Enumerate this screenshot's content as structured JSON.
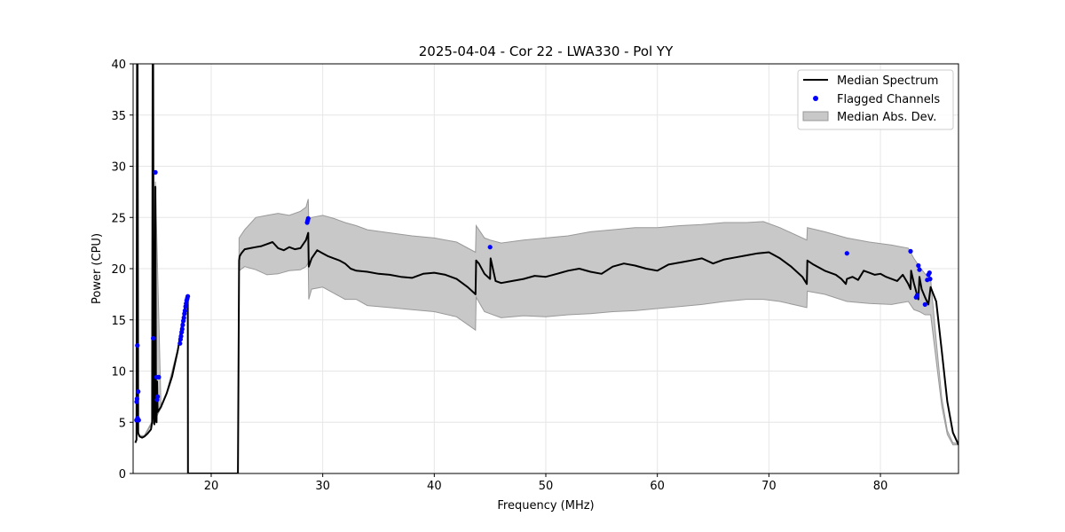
{
  "chart_data": {
    "type": "line",
    "title": "2025-04-04 - Cor 22 - LWA330 - Pol YY",
    "xlabel": "Frequency (MHz)",
    "ylabel": "Power (CPU)",
    "xlim": [
      13.0,
      87.0
    ],
    "ylim": [
      0,
      40
    ],
    "xticks": [
      20,
      30,
      40,
      50,
      60,
      70,
      80
    ],
    "yticks": [
      0,
      5,
      10,
      15,
      20,
      25,
      30,
      35,
      40
    ],
    "grid": true,
    "legend_position": "top-right",
    "colors": {
      "median": "#000000",
      "flagged": "#0000ff",
      "mad_fill": "#c8c8c8",
      "mad_edge": "#999999",
      "grid": "#e6e6e6"
    },
    "series": [
      {
        "name": "Median Spectrum",
        "kind": "line",
        "x": [
          13.2,
          13.3,
          13.35,
          13.4,
          13.45,
          13.5,
          13.6,
          13.8,
          14.0,
          14.3,
          14.6,
          14.7,
          14.75,
          14.8,
          14.85,
          14.9,
          14.95,
          15.0,
          15.05,
          15.1,
          15.15,
          15.2,
          15.5,
          16.0,
          16.5,
          17.0,
          17.3,
          17.6,
          17.9,
          17.92,
          18.0,
          22.4,
          22.5,
          22.55,
          22.7,
          23.0,
          23.5,
          24.0,
          24.5,
          25.0,
          25.5,
          26.0,
          26.5,
          27.0,
          27.5,
          28.0,
          28.5,
          28.7,
          28.75,
          29.0,
          29.5,
          30.0,
          30.5,
          31.0,
          31.5,
          32.0,
          32.5,
          33.0,
          34.0,
          35.0,
          36.0,
          37.0,
          38.0,
          39.0,
          40.0,
          41.0,
          42.0,
          43.0,
          43.7,
          43.75,
          44.0,
          44.5,
          45.0,
          45.05,
          45.5,
          46.0,
          47.0,
          48.0,
          49.0,
          50.0,
          51.0,
          52.0,
          53.0,
          54.0,
          55.0,
          56.0,
          57.0,
          58.0,
          59.0,
          60.0,
          61.0,
          62.0,
          63.0,
          64.0,
          65.0,
          66.0,
          67.0,
          68.0,
          69.0,
          70.0,
          71.0,
          72.0,
          73.0,
          73.4,
          73.45,
          74.0,
          75.0,
          76.0,
          76.5,
          76.9,
          77.0,
          77.5,
          78.0,
          78.5,
          79.0,
          79.5,
          80.0,
          80.5,
          81.0,
          81.5,
          82.0,
          82.5,
          82.7,
          82.75,
          83.0,
          83.2,
          83.4,
          83.5,
          83.7,
          84.0,
          84.3,
          84.5,
          85.0,
          85.5,
          86.0,
          86.5,
          87.0
        ],
        "y": [
          3.0,
          3.3,
          40.0,
          40.0,
          4.0,
          3.8,
          3.6,
          3.5,
          3.6,
          3.9,
          4.3,
          5.0,
          40.0,
          40.0,
          5.5,
          4.8,
          5.2,
          28.0,
          5.5,
          5.0,
          9.0,
          6.0,
          6.5,
          7.8,
          9.5,
          12.0,
          14.0,
          16.0,
          17.2,
          0.0,
          0.0,
          0.0,
          20.8,
          21.2,
          21.5,
          21.9,
          22.0,
          22.1,
          22.2,
          22.4,
          22.6,
          22.0,
          21.8,
          22.1,
          21.9,
          22.0,
          22.8,
          23.5,
          20.2,
          21.0,
          21.8,
          21.5,
          21.2,
          21.0,
          20.8,
          20.5,
          20.0,
          19.8,
          19.7,
          19.5,
          19.4,
          19.2,
          19.1,
          19.5,
          19.6,
          19.4,
          19.0,
          18.2,
          17.5,
          20.8,
          20.5,
          19.5,
          19.0,
          21.0,
          18.8,
          18.6,
          18.8,
          19.0,
          19.3,
          19.2,
          19.5,
          19.8,
          20.0,
          19.7,
          19.5,
          20.2,
          20.5,
          20.3,
          20.0,
          19.8,
          20.4,
          20.6,
          20.8,
          21.0,
          20.5,
          20.9,
          21.1,
          21.3,
          21.5,
          21.6,
          21.0,
          20.2,
          19.2,
          18.5,
          20.8,
          20.4,
          19.8,
          19.4,
          19.0,
          18.5,
          19.0,
          19.2,
          18.9,
          19.8,
          19.6,
          19.4,
          19.5,
          19.2,
          19.0,
          18.8,
          19.4,
          18.5,
          18.0,
          19.8,
          18.6,
          17.8,
          17.0,
          19.2,
          18.0,
          17.2,
          16.5,
          18.2,
          16.8,
          12.0,
          7.0,
          4.0,
          2.8
        ]
      },
      {
        "name": "Median Abs. Dev.",
        "kind": "band",
        "x": [
          13.2,
          13.3,
          13.35,
          13.4,
          13.45,
          13.6,
          14.0,
          14.7,
          14.75,
          14.8,
          14.85,
          15.0,
          15.5,
          16.0,
          17.0,
          17.9,
          17.92,
          22.4,
          22.5,
          23.0,
          24.0,
          25.0,
          26.0,
          27.0,
          28.0,
          28.5,
          28.7,
          28.75,
          29.0,
          30.0,
          31.0,
          32.0,
          33.0,
          34.0,
          36.0,
          38.0,
          40.0,
          42.0,
          43.7,
          43.75,
          44.5,
          45.0,
          46.0,
          48.0,
          50.0,
          52.0,
          54.0,
          56.0,
          58.0,
          60.0,
          62.0,
          64.0,
          66.0,
          68.0,
          69.5,
          71.0,
          73.4,
          73.45,
          75.0,
          77.0,
          79.0,
          81.0,
          82.5,
          83.0,
          83.5,
          84.0,
          84.5,
          85.0,
          85.5,
          86.0,
          86.5,
          87.0
        ],
        "lower": [
          3.0,
          3.2,
          4.0,
          4.0,
          3.9,
          3.6,
          3.6,
          4.9,
          4.9,
          4.9,
          5.0,
          5.3,
          6.4,
          7.7,
          11.8,
          17.0,
          0.0,
          0.0,
          19.8,
          20.2,
          19.9,
          19.4,
          19.5,
          19.8,
          19.9,
          20.2,
          20.6,
          17.0,
          18.0,
          18.2,
          17.6,
          17.0,
          17.0,
          16.4,
          16.2,
          16.0,
          15.8,
          15.3,
          14.0,
          17.2,
          15.8,
          15.6,
          15.2,
          15.4,
          15.3,
          15.5,
          15.6,
          15.8,
          15.9,
          16.1,
          16.3,
          16.5,
          16.8,
          17.0,
          17.0,
          16.8,
          16.2,
          17.8,
          17.5,
          16.8,
          16.6,
          16.5,
          16.8,
          16.0,
          15.8,
          15.5,
          15.5,
          11.0,
          6.6,
          3.8,
          2.8,
          2.8
        ],
        "upper": [
          3.0,
          3.4,
          40.0,
          40.0,
          4.1,
          3.7,
          3.7,
          5.1,
          40.0,
          40.0,
          6.0,
          28.5,
          6.6,
          7.9,
          12.2,
          17.4,
          0.0,
          0.0,
          23.0,
          23.8,
          25.0,
          25.2,
          25.4,
          25.2,
          25.6,
          26.0,
          26.8,
          24.8,
          25.0,
          25.2,
          24.9,
          24.5,
          24.2,
          23.8,
          23.5,
          23.2,
          23.0,
          22.6,
          21.6,
          24.2,
          23.0,
          22.8,
          22.5,
          22.8,
          23.0,
          23.2,
          23.6,
          23.8,
          24.0,
          24.0,
          24.2,
          24.3,
          24.5,
          24.5,
          24.6,
          24.0,
          22.8,
          24.0,
          23.6,
          23.0,
          22.6,
          22.3,
          22.0,
          21.0,
          20.2,
          19.5,
          19.0,
          13.0,
          7.4,
          4.2,
          3.0,
          2.9
        ]
      },
      {
        "name": "Flagged Channels",
        "kind": "scatter",
        "x": [
          13.3,
          13.32,
          13.35,
          13.38,
          13.4,
          13.45,
          13.5,
          14.8,
          15.0,
          15.1,
          15.15,
          15.2,
          15.3,
          17.2,
          17.25,
          17.3,
          17.35,
          17.4,
          17.45,
          17.5,
          17.55,
          17.6,
          17.65,
          17.7,
          17.75,
          17.8,
          17.85,
          17.9,
          28.6,
          28.65,
          28.7,
          45.0,
          77.0,
          82.7,
          83.2,
          83.3,
          83.4,
          83.5,
          84.0,
          84.2,
          84.3,
          84.4,
          84.45
        ],
        "y": [
          5.2,
          7.0,
          7.3,
          12.5,
          5.4,
          8.0,
          5.2,
          13.2,
          29.4,
          9.4,
          7.2,
          7.5,
          9.4,
          12.7,
          13.1,
          13.4,
          13.8,
          14.1,
          14.5,
          14.9,
          15.2,
          15.6,
          15.9,
          16.3,
          16.6,
          16.9,
          17.1,
          17.3,
          24.5,
          24.7,
          24.9,
          22.1,
          21.5,
          21.7,
          17.2,
          17.4,
          20.3,
          19.9,
          16.5,
          18.9,
          19.4,
          19.6,
          19.0
        ]
      }
    ]
  }
}
